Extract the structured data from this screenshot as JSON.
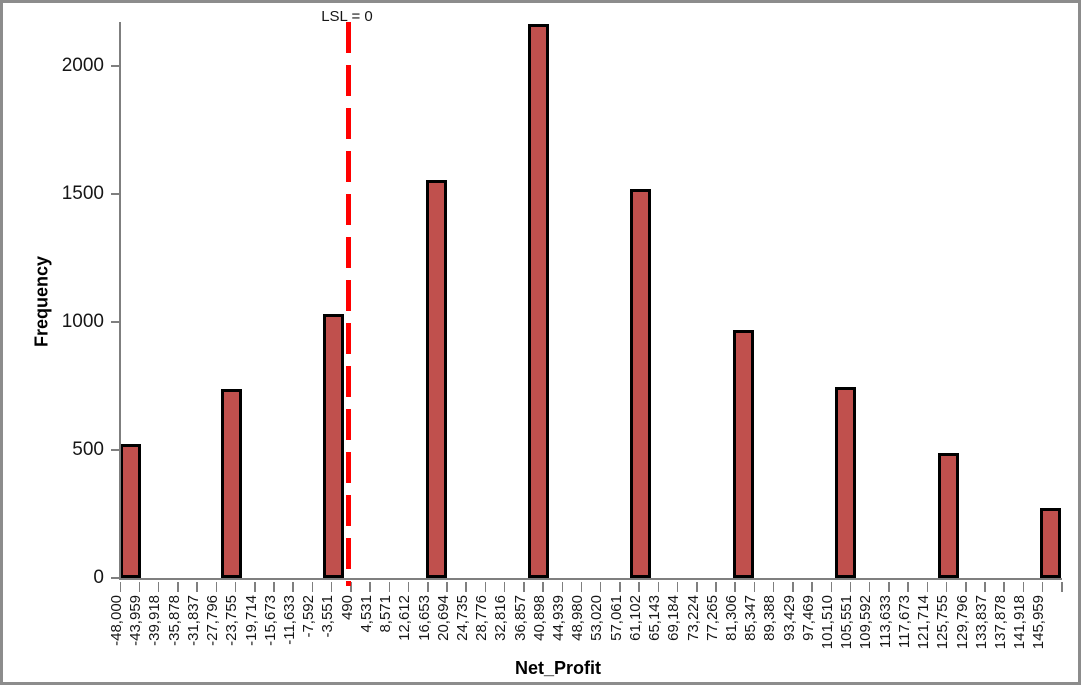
{
  "chart_data": {
    "type": "bar",
    "title": "",
    "xlabel": "Net_Profit",
    "ylabel": "Frequency",
    "grid": false,
    "legend": null,
    "y_ticks": [
      0,
      500,
      1000,
      1500,
      2000
    ],
    "ylim": [
      0,
      2170
    ],
    "x_axis": {
      "min": -48000,
      "max": 145959,
      "bin_width": 4040.8,
      "num_bins": 49,
      "tick_labels": [
        "-48,000",
        "-43,959",
        "-39,918",
        "-35,878",
        "-31,837",
        "-27,796",
        "-23,755",
        "-19,714",
        "-15,673",
        "-11,633",
        "-7,592",
        "-3,551",
        "490",
        "4,531",
        "8,571",
        "12,612",
        "16,653",
        "20,694",
        "24,735",
        "28,776",
        "32,816",
        "36,857",
        "40,898",
        "44,939",
        "48,980",
        "53,020",
        "57,061",
        "61,102",
        "65,143",
        "69,184",
        "73,224",
        "77,265",
        "81,306",
        "85,347",
        "89,388",
        "93,429",
        "97,469",
        "101,510",
        "105,551",
        "109,592",
        "113,633",
        "117,673",
        "121,714",
        "125,755",
        "129,796",
        "133,837",
        "137,878",
        "141,918",
        "145,959"
      ]
    },
    "bars": [
      {
        "x": -45800,
        "frequency": 525
      },
      {
        "x": -24570,
        "frequency": 740
      },
      {
        "x": -3050,
        "frequency": 1030
      },
      {
        "x": 18495,
        "frequency": 1555
      },
      {
        "x": 40010,
        "frequency": 2165
      },
      {
        "x": 61545,
        "frequency": 1520
      },
      {
        "x": 83060,
        "frequency": 970
      },
      {
        "x": 104595,
        "frequency": 745
      },
      {
        "x": 126110,
        "frequency": 490
      },
      {
        "x": 147645,
        "frequency": 275
      }
    ],
    "reference_line": {
      "label": "LSL = 0",
      "x": 0,
      "style": "dashed"
    },
    "colors": {
      "bar_fill": "#C0504D",
      "bar_border": "#000000",
      "reference_line": "#FF0000",
      "axis": "#7F7F7F",
      "text": "#161616",
      "frame_border": "#8C8C8C"
    }
  }
}
